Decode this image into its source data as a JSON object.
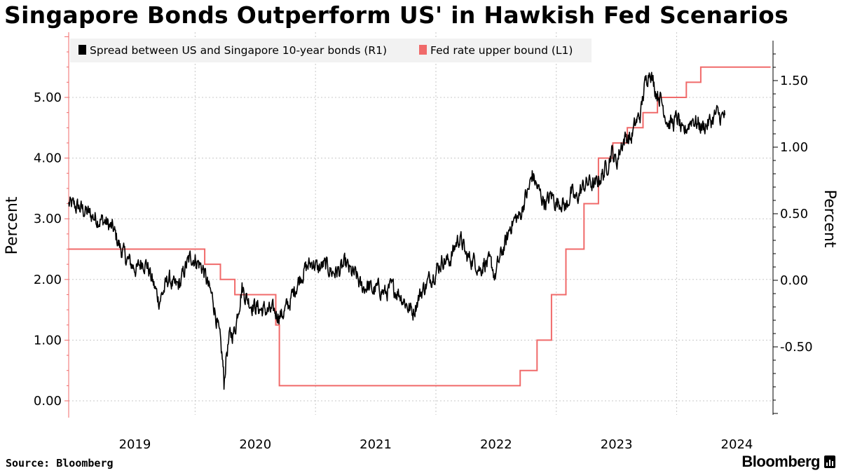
{
  "header": {
    "title": "Singapore Bonds Outperform US' in Hawkish Fed Scenarios"
  },
  "footer": {
    "source": "Source: Bloomberg",
    "brand": "Bloomberg"
  },
  "colors": {
    "spread": "#000000",
    "fed": "#f06a6a",
    "grid": "#c8c8c8",
    "legend_bg": "#f2f2f2"
  },
  "chart_data": {
    "type": "line",
    "title": "Singapore Bonds Outperform US' in Hawkish Fed Scenarios",
    "ylabel_left": "Percent",
    "ylabel_right": "Percent",
    "x_range": [
      2018.45,
      2024.3
    ],
    "x_ticks": [
      {
        "label": "2019",
        "pos": 2019.0
      },
      {
        "label": "2020",
        "pos": 2020.0
      },
      {
        "label": "2021",
        "pos": 2021.0
      },
      {
        "label": "2022",
        "pos": 2022.0
      },
      {
        "label": "2023",
        "pos": 2023.0
      },
      {
        "label": "2024",
        "pos": 2024.0
      }
    ],
    "x_grid": [
      2018.45,
      2019.5,
      2020.5,
      2021.5,
      2022.5,
      2023.5
    ],
    "left_axis": {
      "range": [
        -0.25,
        6.0
      ],
      "ticks": [
        0.0,
        1.0,
        2.0,
        3.0,
        4.0,
        5.0
      ],
      "tick_labels": [
        "0.00",
        "1.00",
        "2.00",
        "3.00",
        "4.00",
        "5.00"
      ]
    },
    "right_axis": {
      "range": [
        -1.0,
        1.8
      ],
      "ticks": [
        -0.5,
        0.0,
        0.5,
        1.0,
        1.5
      ],
      "tick_labels": [
        "-0.50",
        "0.00",
        "0.50",
        "1.00",
        "1.50"
      ]
    },
    "series": [
      {
        "name": "Spread between US and Singapore 10-year bonds (R1)",
        "axis": "right",
        "color": "#000000",
        "points": [
          [
            2018.45,
            0.57
          ],
          [
            2018.55,
            0.54
          ],
          [
            2018.65,
            0.48
          ],
          [
            2018.75,
            0.44
          ],
          [
            2018.82,
            0.38
          ],
          [
            2018.88,
            0.24
          ],
          [
            2018.93,
            0.16
          ],
          [
            2018.97,
            0.12
          ],
          [
            2019.02,
            0.08
          ],
          [
            2019.06,
            0.15
          ],
          [
            2019.1,
            0.12
          ],
          [
            2019.15,
            -0.02
          ],
          [
            2019.2,
            -0.15
          ],
          [
            2019.24,
            -0.08
          ],
          [
            2019.28,
            0.02
          ],
          [
            2019.33,
            -0.06
          ],
          [
            2019.38,
            -0.02
          ],
          [
            2019.42,
            0.1
          ],
          [
            2019.47,
            0.18
          ],
          [
            2019.52,
            0.14
          ],
          [
            2019.57,
            0.08
          ],
          [
            2019.61,
            -0.05
          ],
          [
            2019.65,
            -0.15
          ],
          [
            2019.68,
            -0.3
          ],
          [
            2019.71,
            -0.48
          ],
          [
            2019.73,
            -0.62
          ],
          [
            2019.74,
            -0.78
          ],
          [
            2019.76,
            -0.55
          ],
          [
            2019.79,
            -0.42
          ],
          [
            2019.83,
            -0.38
          ],
          [
            2019.86,
            -0.2
          ],
          [
            2019.89,
            -0.05
          ],
          [
            2019.92,
            -0.12
          ],
          [
            2019.97,
            -0.18
          ],
          [
            2020.05,
            -0.22
          ],
          [
            2020.15,
            -0.24
          ],
          [
            2020.22,
            -0.26
          ],
          [
            2020.28,
            -0.18
          ],
          [
            2020.33,
            -0.06
          ],
          [
            2020.38,
            0.04
          ],
          [
            2020.43,
            0.1
          ],
          [
            2020.48,
            0.14
          ],
          [
            2020.52,
            0.08
          ],
          [
            2020.56,
            0.11
          ],
          [
            2020.6,
            0.1
          ],
          [
            2020.64,
            0.06
          ],
          [
            2020.7,
            0.07
          ],
          [
            2020.75,
            0.12
          ],
          [
            2020.79,
            0.06
          ],
          [
            2020.84,
            0.03
          ],
          [
            2020.88,
            -0.06
          ],
          [
            2020.93,
            -0.04
          ],
          [
            2020.98,
            -0.08
          ],
          [
            2021.03,
            -0.06
          ],
          [
            2021.08,
            -0.1
          ],
          [
            2021.13,
            -0.06
          ],
          [
            2021.18,
            -0.08
          ],
          [
            2021.23,
            -0.14
          ],
          [
            2021.27,
            -0.2
          ],
          [
            2021.31,
            -0.24
          ],
          [
            2021.35,
            -0.14
          ],
          [
            2021.39,
            -0.07
          ],
          [
            2021.43,
            -0.02
          ],
          [
            2021.47,
            0.04
          ],
          [
            2021.52,
            0.1
          ],
          [
            2021.56,
            0.16
          ],
          [
            2021.6,
            0.14
          ],
          [
            2021.63,
            0.18
          ],
          [
            2021.66,
            0.26
          ],
          [
            2021.69,
            0.32
          ],
          [
            2021.72,
            0.28
          ],
          [
            2021.75,
            0.18
          ],
          [
            2021.79,
            0.16
          ],
          [
            2021.83,
            0.14
          ],
          [
            2021.87,
            0.08
          ],
          [
            2021.9,
            0.14
          ],
          [
            2021.94,
            0.12
          ],
          [
            2021.97,
            0.1
          ],
          [
            2021.99,
            0.02
          ],
          [
            2022.02,
            0.13
          ],
          [
            2022.06,
            0.24
          ],
          [
            2022.09,
            0.3
          ],
          [
            2022.12,
            0.42
          ],
          [
            2022.16,
            0.46
          ],
          [
            2022.2,
            0.48
          ],
          [
            2022.24,
            0.62
          ],
          [
            2022.27,
            0.67
          ],
          [
            2022.3,
            0.8
          ],
          [
            2022.34,
            0.7
          ],
          [
            2022.38,
            0.62
          ],
          [
            2022.42,
            0.58
          ],
          [
            2022.46,
            0.64
          ],
          [
            2022.5,
            0.58
          ],
          [
            2022.54,
            0.6
          ],
          [
            2022.58,
            0.54
          ],
          [
            2022.62,
            0.66
          ],
          [
            2022.66,
            0.6
          ],
          [
            2022.7,
            0.67
          ],
          [
            2022.74,
            0.72
          ],
          [
            2022.78,
            0.74
          ],
          [
            2022.82,
            0.7
          ],
          [
            2022.86,
            0.77
          ],
          [
            2022.89,
            0.8
          ],
          [
            2022.92,
            0.86
          ],
          [
            2022.96,
            0.97
          ],
          [
            2023.0,
            0.88
          ],
          [
            2023.04,
            1.02
          ],
          [
            2023.08,
            1.08
          ],
          [
            2023.12,
            1.06
          ],
          [
            2023.16,
            1.18
          ],
          [
            2023.2,
            1.25
          ],
          [
            2023.23,
            1.44
          ],
          [
            2023.26,
            1.55
          ],
          [
            2023.28,
            1.6
          ],
          [
            2023.3,
            1.5
          ],
          [
            2023.33,
            1.42
          ],
          [
            2023.36,
            1.38
          ],
          [
            2023.39,
            1.3
          ],
          [
            2023.43,
            1.18
          ],
          [
            2023.47,
            1.18
          ],
          [
            2023.51,
            1.22
          ],
          [
            2023.55,
            1.08
          ],
          [
            2023.59,
            1.16
          ],
          [
            2023.63,
            1.22
          ],
          [
            2023.67,
            1.18
          ],
          [
            2023.71,
            1.15
          ],
          [
            2023.75,
            1.17
          ],
          [
            2023.79,
            1.2
          ],
          [
            2023.83,
            1.25
          ],
          [
            2023.87,
            1.22
          ],
          [
            2023.9,
            1.24
          ]
        ]
      },
      {
        "name": "Fed rate upper bound (L1)",
        "axis": "left",
        "color": "#f06a6a",
        "steps": [
          [
            2018.45,
            2.5
          ],
          [
            2019.58,
            2.25
          ],
          [
            2019.71,
            2.0
          ],
          [
            2019.83,
            1.75
          ],
          [
            2020.17,
            1.25
          ],
          [
            2020.2,
            0.25
          ],
          [
            2022.2,
            0.5
          ],
          [
            2022.34,
            1.0
          ],
          [
            2022.46,
            1.75
          ],
          [
            2022.58,
            2.5
          ],
          [
            2022.73,
            3.25
          ],
          [
            2022.85,
            4.0
          ],
          [
            2022.97,
            4.25
          ],
          [
            2023.09,
            4.5
          ],
          [
            2023.22,
            4.75
          ],
          [
            2023.34,
            5.0
          ],
          [
            2023.58,
            5.25
          ],
          [
            2023.7,
            5.5
          ],
          [
            2024.28,
            5.5
          ]
        ]
      }
    ],
    "legend": {
      "placement": "top-left",
      "entries": [
        {
          "label": "Spread between US and Singapore 10-year bonds (R1)",
          "color": "#000000"
        },
        {
          "label": "Fed rate upper bound (L1)",
          "color": "#f06a6a"
        }
      ]
    }
  }
}
